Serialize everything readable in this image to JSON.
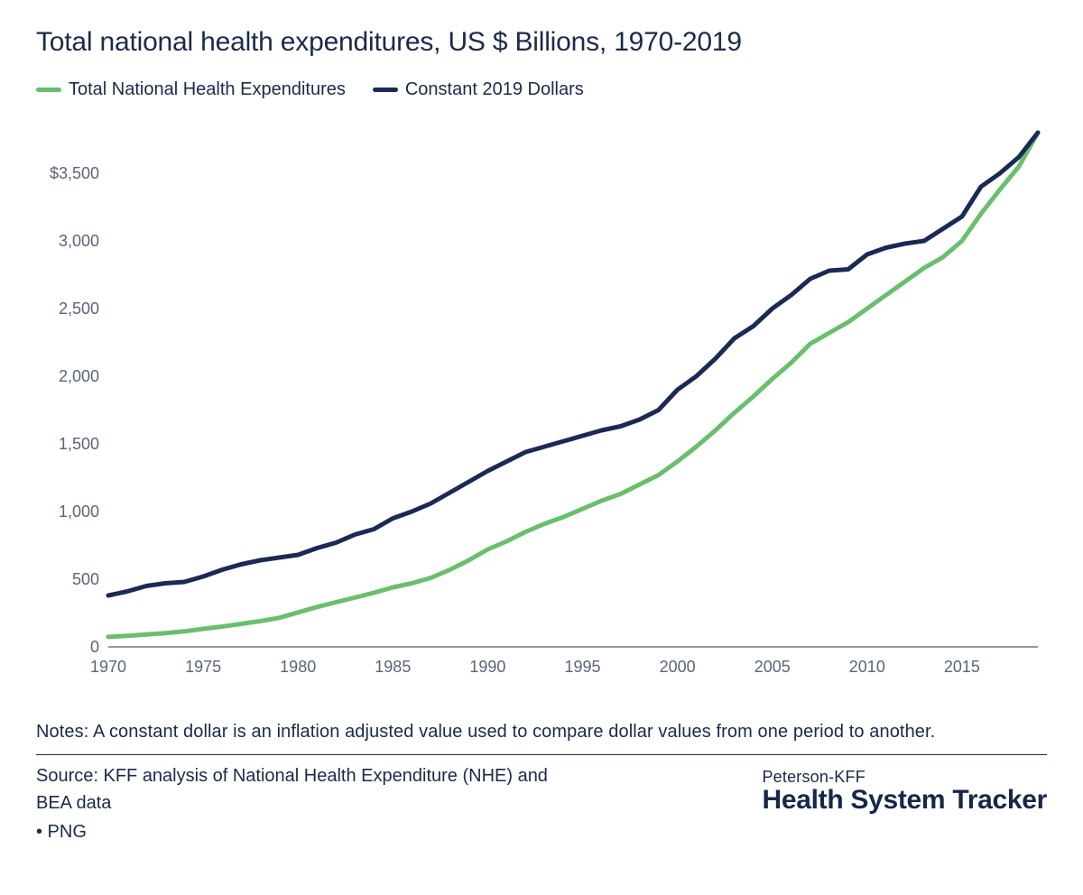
{
  "title": "Total national health expenditures, US $ Billions, 1970-2019",
  "legend": {
    "series1": {
      "label": "Total National Health Expenditures",
      "color": "#69bf6b"
    },
    "series2": {
      "label": "Constant 2019 Dollars",
      "color": "#1a2a55"
    }
  },
  "chart": {
    "type": "line",
    "background_color": "#ffffff",
    "axis_color": "#333333",
    "label_color": "#5a6478",
    "label_fontsize": 18,
    "line_width": 5,
    "xlim": [
      1970,
      2019
    ],
    "ylim": [
      0,
      3800
    ],
    "xticks": [
      1970,
      1975,
      1980,
      1985,
      1990,
      1995,
      2000,
      2005,
      2010,
      2015
    ],
    "yticks": [
      0,
      500,
      1000,
      1500,
      2000,
      2500,
      3000,
      3500
    ],
    "ytick_labels": [
      "0",
      "500",
      "1,000",
      "1,500",
      "2,000",
      "2,500",
      "3,000",
      "$3,500"
    ],
    "years": [
      1970,
      1971,
      1972,
      1973,
      1974,
      1975,
      1976,
      1977,
      1978,
      1979,
      1980,
      1981,
      1982,
      1983,
      1984,
      1985,
      1986,
      1987,
      1988,
      1989,
      1990,
      1991,
      1992,
      1993,
      1994,
      1995,
      1996,
      1997,
      1998,
      1999,
      2000,
      2001,
      2002,
      2003,
      2004,
      2005,
      2006,
      2007,
      2008,
      2009,
      2010,
      2011,
      2012,
      2013,
      2014,
      2015,
      2016,
      2017,
      2018,
      2019
    ],
    "series": [
      {
        "name": "Total National Health Expenditures",
        "color": "#69bf6b",
        "values": [
          74,
          82,
          92,
          102,
          115,
          133,
          150,
          170,
          190,
          215,
          255,
          295,
          330,
          365,
          400,
          440,
          470,
          510,
          570,
          640,
          720,
          780,
          850,
          910,
          960,
          1020,
          1080,
          1130,
          1200,
          1270,
          1370,
          1480,
          1600,
          1730,
          1850,
          1980,
          2100,
          2240,
          2320,
          2400,
          2500,
          2600,
          2700,
          2800,
          2880,
          3000,
          3200,
          3380,
          3550,
          3800
        ]
      },
      {
        "name": "Constant 2019 Dollars",
        "color": "#1a2a55",
        "values": [
          380,
          410,
          450,
          470,
          480,
          520,
          570,
          610,
          640,
          660,
          680,
          730,
          770,
          830,
          870,
          950,
          1000,
          1060,
          1140,
          1220,
          1300,
          1370,
          1440,
          1480,
          1520,
          1560,
          1600,
          1630,
          1680,
          1750,
          1900,
          2000,
          2130,
          2280,
          2370,
          2500,
          2600,
          2720,
          2780,
          2790,
          2900,
          2950,
          2980,
          3000,
          3090,
          3180,
          3400,
          3500,
          3620,
          3800
        ]
      }
    ]
  },
  "notes": "Notes: A constant dollar is an inflation adjusted value used to compare dollar values from one period to another.",
  "source_line1": "Source: KFF analysis of National Health Expenditure (NHE) and",
  "source_line2": "BEA data",
  "source_png": " • PNG",
  "brand_top": "Peterson-KFF",
  "brand_bottom": "Health System Tracker"
}
